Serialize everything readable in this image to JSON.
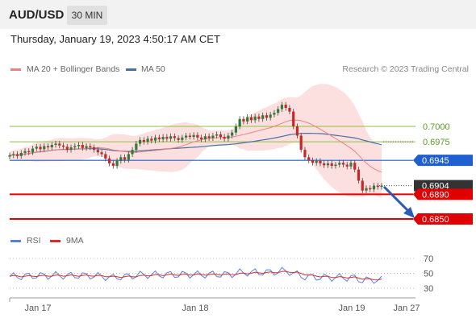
{
  "header": {
    "symbol": "AUD/USD",
    "timeframe": "30 MIN"
  },
  "datetime": "Thursday, January 19, 2023 4:50:17 AM CET",
  "legend": {
    "ma20": "MA 20 + Bollinger Bands",
    "ma50": "MA 50",
    "rsi": "RSI",
    "ma9": "9MA"
  },
  "credit": "Research © 2023 Trading Central",
  "colors": {
    "candle_up": "#2e7d32",
    "candle_down": "#c62828",
    "ma20": "#f08080",
    "bollinger": "#fbd5d5",
    "ma50": "#4a6fa5",
    "rsi": "#5b7fdc",
    "rsi_ma": "#d32f2f",
    "pivot": "#1f5fd0",
    "support": "#e00000",
    "resistance": "#8cbf3f",
    "arrow": "#2a5db0"
  },
  "chart_data": {
    "type": "candlestick",
    "x_labels": [
      "Jan 17",
      "Jan 18",
      "Jan 19",
      "Jan 27"
    ],
    "price_scale": [
      0.685,
      0.7
    ],
    "levels": [
      {
        "value": "0.7000",
        "kind": "resistance"
      },
      {
        "value": "0.6975",
        "kind": "resistance"
      },
      {
        "value": "0.6945",
        "kind": "pivot"
      },
      {
        "value": "0.6904",
        "kind": "last"
      },
      {
        "value": "0.6890",
        "kind": "support"
      },
      {
        "value": "0.6850",
        "kind": "support"
      }
    ],
    "candles": [
      [
        0.6951,
        0.6953
      ],
      [
        0.6953,
        0.6955
      ],
      [
        0.6955,
        0.6952
      ],
      [
        0.6952,
        0.6957
      ],
      [
        0.6957,
        0.696
      ],
      [
        0.696,
        0.6958
      ],
      [
        0.6958,
        0.6964
      ],
      [
        0.6964,
        0.6967
      ],
      [
        0.6967,
        0.6963
      ],
      [
        0.6963,
        0.6968
      ],
      [
        0.6968,
        0.6966
      ],
      [
        0.6966,
        0.697
      ],
      [
        0.697,
        0.6972
      ],
      [
        0.6972,
        0.6969
      ],
      [
        0.6969,
        0.6967
      ],
      [
        0.6967,
        0.6962
      ],
      [
        0.6962,
        0.6966
      ],
      [
        0.6966,
        0.6968
      ],
      [
        0.6968,
        0.697
      ],
      [
        0.697,
        0.6965
      ],
      [
        0.6965,
        0.6968
      ],
      [
        0.6968,
        0.6966
      ],
      [
        0.6966,
        0.6962
      ],
      [
        0.6962,
        0.6958
      ],
      [
        0.6958,
        0.6955
      ],
      [
        0.6955,
        0.6948
      ],
      [
        0.6948,
        0.694
      ],
      [
        0.694,
        0.6936
      ],
      [
        0.6936,
        0.6944
      ],
      [
        0.6944,
        0.695
      ],
      [
        0.695,
        0.6946
      ],
      [
        0.6946,
        0.6955
      ],
      [
        0.6955,
        0.6962
      ],
      [
        0.6962,
        0.6972
      ],
      [
        0.6972,
        0.6978
      ],
      [
        0.6978,
        0.6975
      ],
      [
        0.6975,
        0.698
      ],
      [
        0.698,
        0.6977
      ],
      [
        0.6977,
        0.6982
      ],
      [
        0.6982,
        0.6979
      ],
      [
        0.6979,
        0.6983
      ],
      [
        0.6983,
        0.698
      ],
      [
        0.698,
        0.6984
      ],
      [
        0.6984,
        0.6981
      ],
      [
        0.6981,
        0.6978
      ],
      [
        0.6978,
        0.6982
      ],
      [
        0.6982,
        0.6985
      ],
      [
        0.6985,
        0.6983
      ],
      [
        0.6983,
        0.6986
      ],
      [
        0.6986,
        0.6982
      ],
      [
        0.6982,
        0.6979
      ],
      [
        0.6979,
        0.6984
      ],
      [
        0.6984,
        0.6981
      ],
      [
        0.6981,
        0.6985
      ],
      [
        0.6985,
        0.6987
      ],
      [
        0.6987,
        0.6983
      ],
      [
        0.6983,
        0.698
      ],
      [
        0.698,
        0.6985
      ],
      [
        0.6985,
        0.699
      ],
      [
        0.699,
        0.7
      ],
      [
        0.7,
        0.7012
      ],
      [
        0.7012,
        0.7008
      ],
      [
        0.7008,
        0.7015
      ],
      [
        0.7015,
        0.701
      ],
      [
        0.701,
        0.7016
      ],
      [
        0.7016,
        0.7012
      ],
      [
        0.7012,
        0.7018
      ],
      [
        0.7018,
        0.7014
      ],
      [
        0.7014,
        0.7019
      ],
      [
        0.7019,
        0.7022
      ],
      [
        0.7022,
        0.7028
      ],
      [
        0.7028,
        0.7035
      ],
      [
        0.7035,
        0.703
      ],
      [
        0.703,
        0.7024
      ],
      [
        0.7024,
        0.7
      ],
      [
        0.7,
        0.6985
      ],
      [
        0.6985,
        0.6962
      ],
      [
        0.6962,
        0.695
      ],
      [
        0.695,
        0.6945
      ],
      [
        0.6945,
        0.6941
      ],
      [
        0.6941,
        0.6944
      ],
      [
        0.6944,
        0.694
      ],
      [
        0.694,
        0.6937
      ],
      [
        0.6937,
        0.694
      ],
      [
        0.694,
        0.6936
      ],
      [
        0.6936,
        0.6938
      ],
      [
        0.6938,
        0.6941
      ],
      [
        0.6941,
        0.6938
      ],
      [
        0.6938,
        0.6935
      ],
      [
        0.6935,
        0.6941
      ],
      [
        0.6941,
        0.693
      ],
      [
        0.693,
        0.6912
      ],
      [
        0.6912,
        0.6896
      ],
      [
        0.6896,
        0.69
      ],
      [
        0.69,
        0.6898
      ],
      [
        0.6898,
        0.6904
      ],
      [
        0.6904,
        0.6902
      ],
      [
        0.6902,
        0.6904
      ]
    ],
    "rsi_scale": [
      "70",
      "50",
      "30"
    ]
  }
}
